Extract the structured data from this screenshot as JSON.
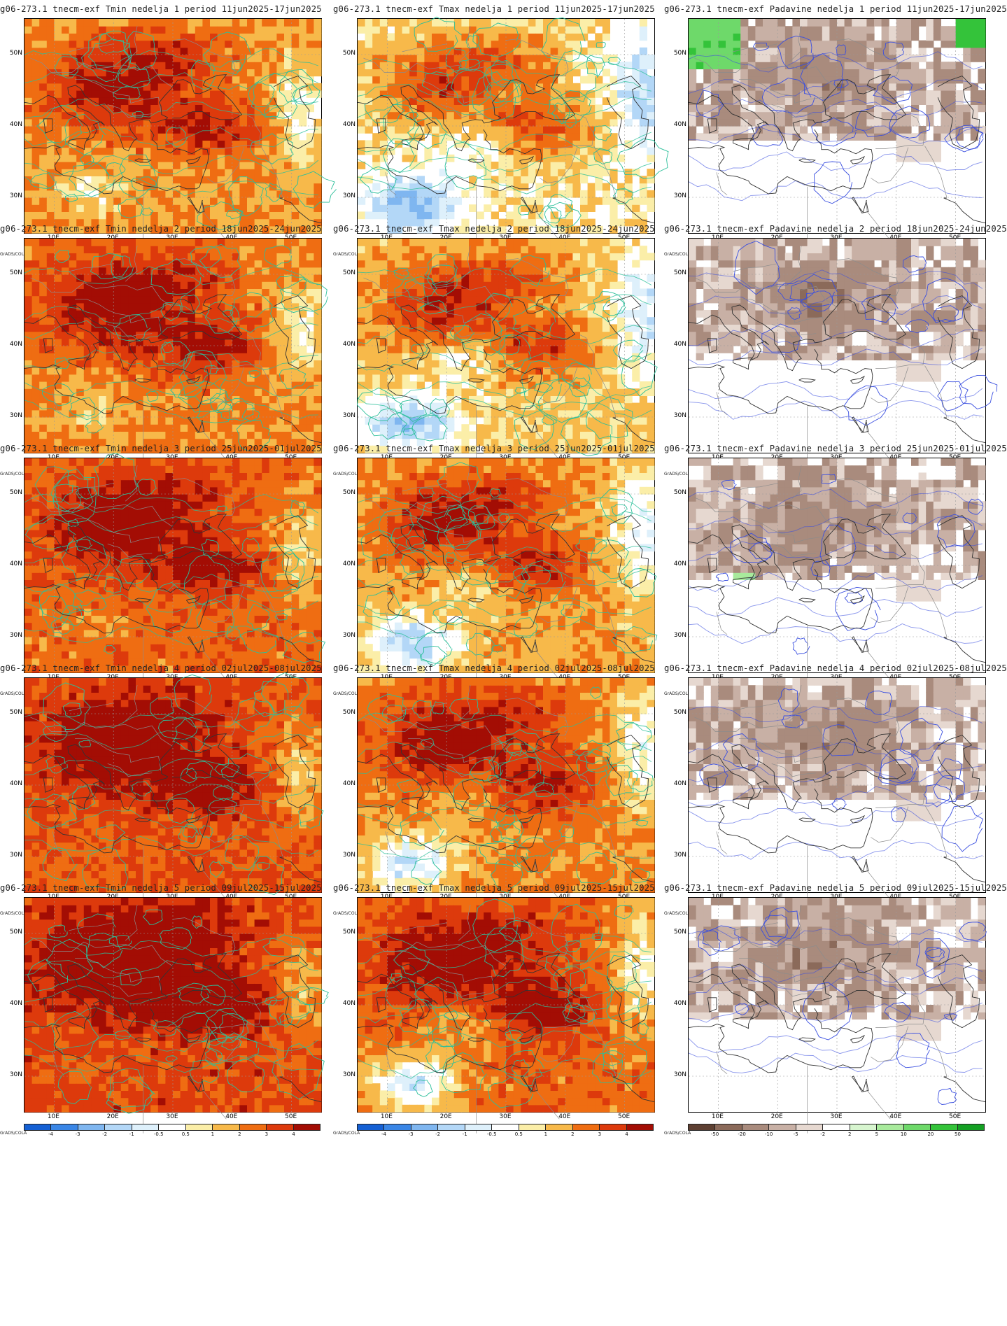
{
  "panels": [
    {
      "title": "g06-273.1 tnecm-exf Tmin nedelja 1 period 11jun2025-17jun2025",
      "var": "tmin",
      "week": 1
    },
    {
      "title": "g06-273.1 tnecm-exf Tmax nedelja 1 period 11jun2025-17jun2025",
      "var": "tmax",
      "week": 1
    },
    {
      "title": "g06-273.1 tnecm-exf Padavine nedelja 1 period 11jun2025-17jun2025",
      "var": "prec",
      "week": 1
    },
    {
      "title": "g06-273.1 tnecm-exf Tmin nedelja 2 period 18jun2025-24jun2025",
      "var": "tmin",
      "week": 2
    },
    {
      "title": "g06-273.1 tnecm-exf Tmax nedelja 2 period 18jun2025-24jun2025",
      "var": "tmax",
      "week": 2
    },
    {
      "title": "g06-273.1 tnecm-exf Padavine nedelja 2 period 18jun2025-24jun2025",
      "var": "prec",
      "week": 2
    },
    {
      "title": "g06-273.1 tnecm-exf Tmin nedelja 3 period 25jun2025-01jul2025",
      "var": "tmin",
      "week": 3
    },
    {
      "title": "g06-273.1 tnecm-exf Tmax nedelja 3 period 25jun2025-01jul2025",
      "var": "tmax",
      "week": 3
    },
    {
      "title": "g06-273.1 tnecm-exf Padavine nedelja 3 period 25jun2025-01jul2025",
      "var": "prec",
      "week": 3
    },
    {
      "title": "g06-273.1 tnecm-exf Tmin nedelja 4 period 02jul2025-08jul2025",
      "var": "tmin",
      "week": 4
    },
    {
      "title": "g06-273.1 tnecm-exf Tmax nedelja 4 period 02jul2025-08jul2025",
      "var": "tmax",
      "week": 4
    },
    {
      "title": "g06-273.1 tnecm-exf Padavine nedelja 4 period 02jul2025-08jul2025",
      "var": "prec",
      "week": 4
    },
    {
      "title": "g06-273.1 tnecm-exf Tmin nedelja 5 period 09jul2025-15jul2025",
      "var": "tmin",
      "week": 5
    },
    {
      "title": "g06-273.1 tnecm-exf Tmax nedelja 5 period 09jul2025-15jul2025",
      "var": "tmax",
      "week": 5
    },
    {
      "title": "g06-273.1 tnecm-exf Padavine nedelja 5 period 09jul2025-15jul2025",
      "var": "prec",
      "week": 5
    }
  ],
  "axes": {
    "lon_labels": [
      "10E",
      "20E",
      "30E",
      "40E",
      "50E"
    ],
    "lat_labels": [
      "50N",
      "40N",
      "30N"
    ]
  },
  "colorbars": {
    "temperature": {
      "ticks": [
        "-4",
        "-3",
        "-2",
        "-1",
        "-0.5",
        "0.5",
        "1",
        "2",
        "3",
        "4"
      ],
      "colors": [
        "#1560d4",
        "#3a86e6",
        "#7fb6f0",
        "#b3d7f7",
        "#def0fb",
        "#ffffff",
        "#fbeea8",
        "#f7b94a",
        "#ef6d12",
        "#dd3a0c",
        "#a30d04"
      ]
    },
    "precipitation": {
      "ticks": [
        "-50",
        "-20",
        "-10",
        "-5",
        "-2",
        "2",
        "5",
        "10",
        "20",
        "50"
      ],
      "colors": [
        "#5e4032",
        "#8b6a5a",
        "#a98b7d",
        "#c8b0a5",
        "#e6d8d0",
        "#ffffff",
        "#d7f5cf",
        "#a8ea9c",
        "#6ed96a",
        "#34c33a",
        "#14a023"
      ]
    }
  },
  "credit": "GrADS/COLA",
  "map": {
    "lon_range": [
      5,
      55
    ],
    "lat_range": [
      25,
      55
    ],
    "contour_colors": {
      "temperature": "#2bbf9a",
      "precipitation": "#3a4fe0"
    }
  }
}
